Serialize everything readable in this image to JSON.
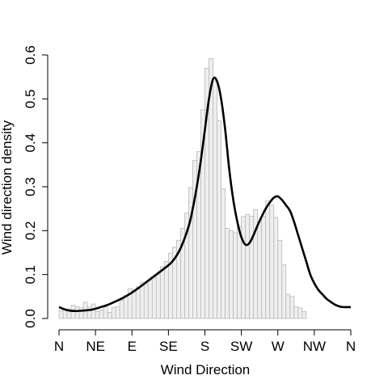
{
  "chart_data": {
    "type": "bar",
    "title": "",
    "xlabel": "Wind Direction",
    "ylabel": "Wind direction density",
    "xlim": [
      0,
      360
    ],
    "ylim": [
      0,
      0.6
    ],
    "bin_width": 5,
    "x_ticks": [
      {
        "value": 0,
        "label": "N"
      },
      {
        "value": 45,
        "label": "NE"
      },
      {
        "value": 90,
        "label": "E"
      },
      {
        "value": 135,
        "label": "SE"
      },
      {
        "value": 180,
        "label": "S"
      },
      {
        "value": 225,
        "label": "SW"
      },
      {
        "value": 270,
        "label": "W"
      },
      {
        "value": 315,
        "label": "NW"
      },
      {
        "value": 360,
        "label": "N"
      }
    ],
    "y_ticks": [
      "0.0",
      "0.1",
      "0.2",
      "0.3",
      "0.4",
      "0.5",
      "0.6"
    ],
    "histogram": [
      0.018,
      0.02,
      0.022,
      0.03,
      0.027,
      0.024,
      0.037,
      0.026,
      0.033,
      0.016,
      0.02,
      0.026,
      0.014,
      0.025,
      0.027,
      0.042,
      0.052,
      0.068,
      0.065,
      0.072,
      0.082,
      0.078,
      0.087,
      0.092,
      0.1,
      0.118,
      0.13,
      0.148,
      0.162,
      0.178,
      0.205,
      0.24,
      0.298,
      0.36,
      0.38,
      0.475,
      0.57,
      0.592,
      0.54,
      0.45,
      0.295,
      0.205,
      0.2,
      0.195,
      0.21,
      0.232,
      0.237,
      0.233,
      0.248,
      0.22,
      0.233,
      0.268,
      0.258,
      0.23,
      0.178,
      0.122,
      0.055,
      0.05,
      0.027,
      0.024,
      0.016
    ],
    "density_curve": {
      "x": [
        0,
        10,
        20,
        30,
        40,
        50,
        60,
        70,
        80,
        90,
        100,
        110,
        120,
        130,
        140,
        150,
        160,
        165,
        170,
        175,
        180,
        185,
        190,
        195,
        200,
        205,
        210,
        215,
        220,
        225,
        230,
        235,
        240,
        245,
        250,
        255,
        260,
        265,
        270,
        275,
        280,
        285,
        290,
        295,
        300,
        305,
        310,
        315,
        320,
        325,
        330,
        335,
        340,
        345,
        350,
        360
      ],
      "y": [
        0.026,
        0.019,
        0.017,
        0.018,
        0.02,
        0.025,
        0.031,
        0.039,
        0.048,
        0.059,
        0.072,
        0.086,
        0.1,
        0.114,
        0.13,
        0.16,
        0.21,
        0.25,
        0.3,
        0.36,
        0.43,
        0.5,
        0.545,
        0.54,
        0.5,
        0.43,
        0.34,
        0.27,
        0.22,
        0.185,
        0.168,
        0.172,
        0.19,
        0.212,
        0.232,
        0.25,
        0.264,
        0.275,
        0.278,
        0.27,
        0.258,
        0.245,
        0.22,
        0.19,
        0.16,
        0.13,
        0.1,
        0.08,
        0.065,
        0.055,
        0.045,
        0.038,
        0.032,
        0.028,
        0.026,
        0.026
      ]
    }
  }
}
